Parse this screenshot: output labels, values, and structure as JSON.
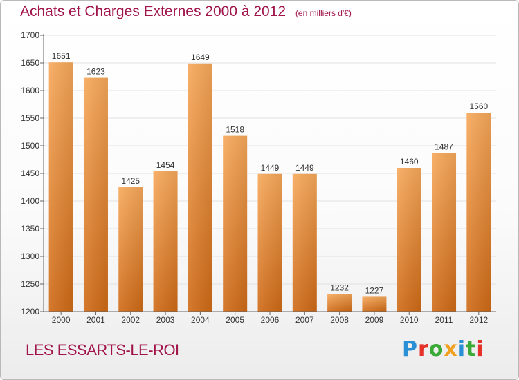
{
  "title": "Achats et Charges Externes 2000 à 2012",
  "subtitle": "(en milliers d'€)",
  "commune": "LES ESSARTS-LE-ROI",
  "logo": {
    "text": "Proxiti",
    "letters": [
      "P",
      "r",
      "o",
      "x",
      "i",
      "t",
      "i"
    ],
    "colors": [
      "#2a8fd4",
      "#e4312a",
      "#3aa935",
      "#f0a01e",
      "#2a8fd4",
      "#3aa935",
      "#e4312a"
    ]
  },
  "colors": {
    "title": "#a0144a",
    "bar_top": "#f7a85a",
    "bar_bottom": "#cf6a16",
    "grid": "#e2e2e2",
    "axis": "#666666"
  },
  "chart_data": {
    "type": "bar",
    "title": "Achats et Charges Externes 2000 à 2012",
    "subtitle": "(en milliers d'€)",
    "xlabel": "",
    "ylabel": "",
    "categories": [
      "2000",
      "2001",
      "2002",
      "2003",
      "2004",
      "2005",
      "2006",
      "2007",
      "2008",
      "2009",
      "2010",
      "2011",
      "2012"
    ],
    "values": [
      1651,
      1623,
      1425,
      1454,
      1649,
      1518,
      1449,
      1449,
      1232,
      1227,
      1460,
      1487,
      1560
    ],
    "ylim": [
      1200,
      1700
    ],
    "yticks": [
      1200,
      1250,
      1300,
      1350,
      1400,
      1450,
      1500,
      1550,
      1600,
      1650,
      1700
    ],
    "grid": true,
    "legend": "none"
  }
}
